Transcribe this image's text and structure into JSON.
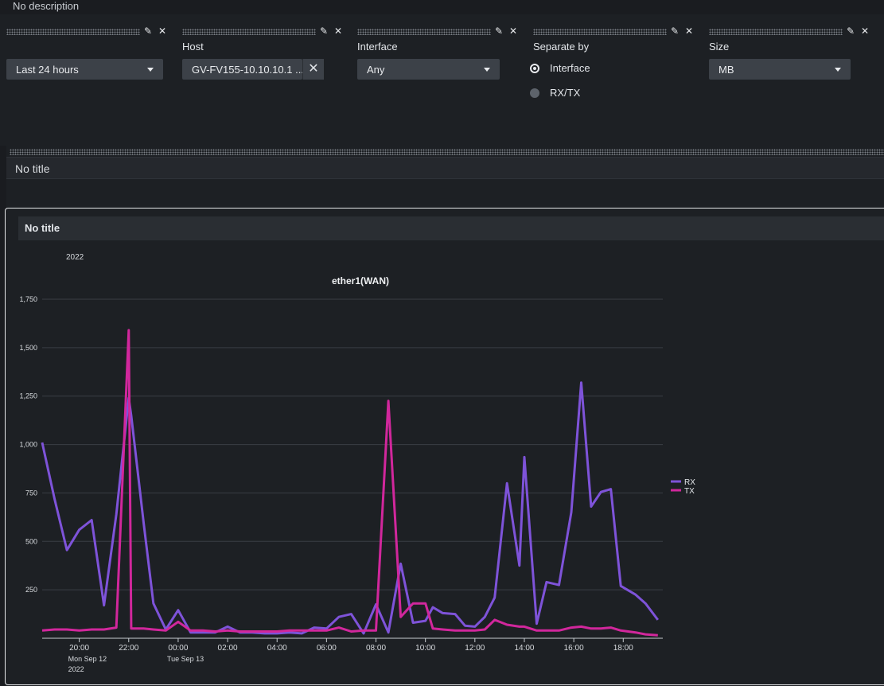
{
  "dashboard": {
    "description": "No description"
  },
  "inputs": {
    "time": {
      "value": "Last 24 hours"
    },
    "host": {
      "label": "Host",
      "value": "GV-FV155-10.10.10.1 ..."
    },
    "interface": {
      "label": "Interface",
      "value": "Any"
    },
    "separate_by": {
      "label": "Separate by",
      "options": [
        "Interface",
        "RX/TX"
      ],
      "selected": "Interface"
    },
    "size": {
      "label": "Size",
      "value": "MB"
    }
  },
  "panels": [
    {
      "title": "No title"
    },
    {
      "title": "No title"
    }
  ],
  "colors": {
    "rx": "#7e53d9",
    "tx": "#d1279c",
    "grid": "#3a3e44"
  },
  "chart_data": {
    "type": "line",
    "title": "ether1(WAN)",
    "top_label": "2022",
    "ylim": [
      0,
      1750
    ],
    "yticks": [
      250,
      500,
      750,
      1000,
      1250,
      1500,
      1750
    ],
    "ytick_labels": [
      "250",
      "500",
      "750",
      "1,000",
      "1,250",
      "1,500",
      "1,750"
    ],
    "xlim": [
      18.5,
      43.6
    ],
    "xticks": [
      {
        "x": 20,
        "label": "20:00",
        "sub": [
          "Mon Sep 12",
          "2022"
        ]
      },
      {
        "x": 22,
        "label": "22:00"
      },
      {
        "x": 24,
        "label": "00:00",
        "sub": [
          "Tue Sep 13"
        ]
      },
      {
        "x": 26,
        "label": "02:00"
      },
      {
        "x": 28,
        "label": "04:00"
      },
      {
        "x": 30,
        "label": "06:00"
      },
      {
        "x": 32,
        "label": "08:00"
      },
      {
        "x": 34,
        "label": "10:00"
      },
      {
        "x": 36,
        "label": "12:00"
      },
      {
        "x": 38,
        "label": "14:00"
      },
      {
        "x": 40,
        "label": "16:00"
      },
      {
        "x": 42,
        "label": "18:00"
      }
    ],
    "legend": [
      "RX",
      "TX"
    ],
    "legend_position": "right",
    "series": [
      {
        "name": "RX",
        "x": [
          18.5,
          19.0,
          19.5,
          20.0,
          20.5,
          21.0,
          21.5,
          22.0,
          22.1,
          22.6,
          23.0,
          23.5,
          24.0,
          24.5,
          25.0,
          25.5,
          26.0,
          26.5,
          27.0,
          27.5,
          28.0,
          28.5,
          29.0,
          29.5,
          30.0,
          30.5,
          31.0,
          31.5,
          32.0,
          32.5,
          33.0,
          33.5,
          34.0,
          34.3,
          34.7,
          35.2,
          35.6,
          36.0,
          36.4,
          36.8,
          37.3,
          37.8,
          38.0,
          38.5,
          38.9,
          39.4,
          39.9,
          40.3,
          40.7,
          41.1,
          41.5,
          41.9,
          42.5,
          42.9,
          43.4
        ],
        "y": [
          1010,
          720,
          455,
          560,
          610,
          170,
          640,
          1240,
          1150,
          600,
          180,
          45,
          145,
          30,
          30,
          30,
          60,
          30,
          30,
          25,
          25,
          30,
          25,
          55,
          50,
          110,
          125,
          25,
          175,
          30,
          385,
          80,
          90,
          160,
          130,
          125,
          65,
          60,
          110,
          210,
          800,
          375,
          935,
          75,
          290,
          275,
          650,
          1320,
          680,
          755,
          770,
          270,
          225,
          180,
          95
        ]
      },
      {
        "name": "TX",
        "x": [
          18.5,
          19.0,
          19.5,
          20.0,
          20.5,
          21.0,
          21.5,
          22.0,
          22.1,
          22.6,
          23.0,
          23.5,
          24.0,
          24.5,
          25.0,
          25.5,
          26.0,
          26.5,
          27.0,
          27.5,
          28.0,
          28.5,
          29.0,
          29.5,
          30.0,
          30.5,
          31.0,
          31.5,
          32.0,
          32.5,
          33.0,
          33.5,
          34.0,
          34.3,
          34.7,
          35.2,
          35.6,
          36.0,
          36.4,
          36.8,
          37.3,
          37.8,
          38.0,
          38.5,
          38.9,
          39.4,
          39.9,
          40.3,
          40.7,
          41.1,
          41.5,
          41.9,
          42.5,
          42.9,
          43.4
        ],
        "y": [
          40,
          45,
          45,
          40,
          45,
          45,
          55,
          1590,
          50,
          50,
          45,
          40,
          85,
          40,
          40,
          35,
          40,
          35,
          35,
          35,
          35,
          40,
          40,
          40,
          40,
          55,
          35,
          40,
          40,
          1225,
          110,
          180,
          180,
          50,
          45,
          40,
          40,
          40,
          45,
          95,
          70,
          60,
          60,
          40,
          40,
          40,
          55,
          60,
          50,
          50,
          55,
          40,
          30,
          20,
          15
        ]
      }
    ]
  }
}
